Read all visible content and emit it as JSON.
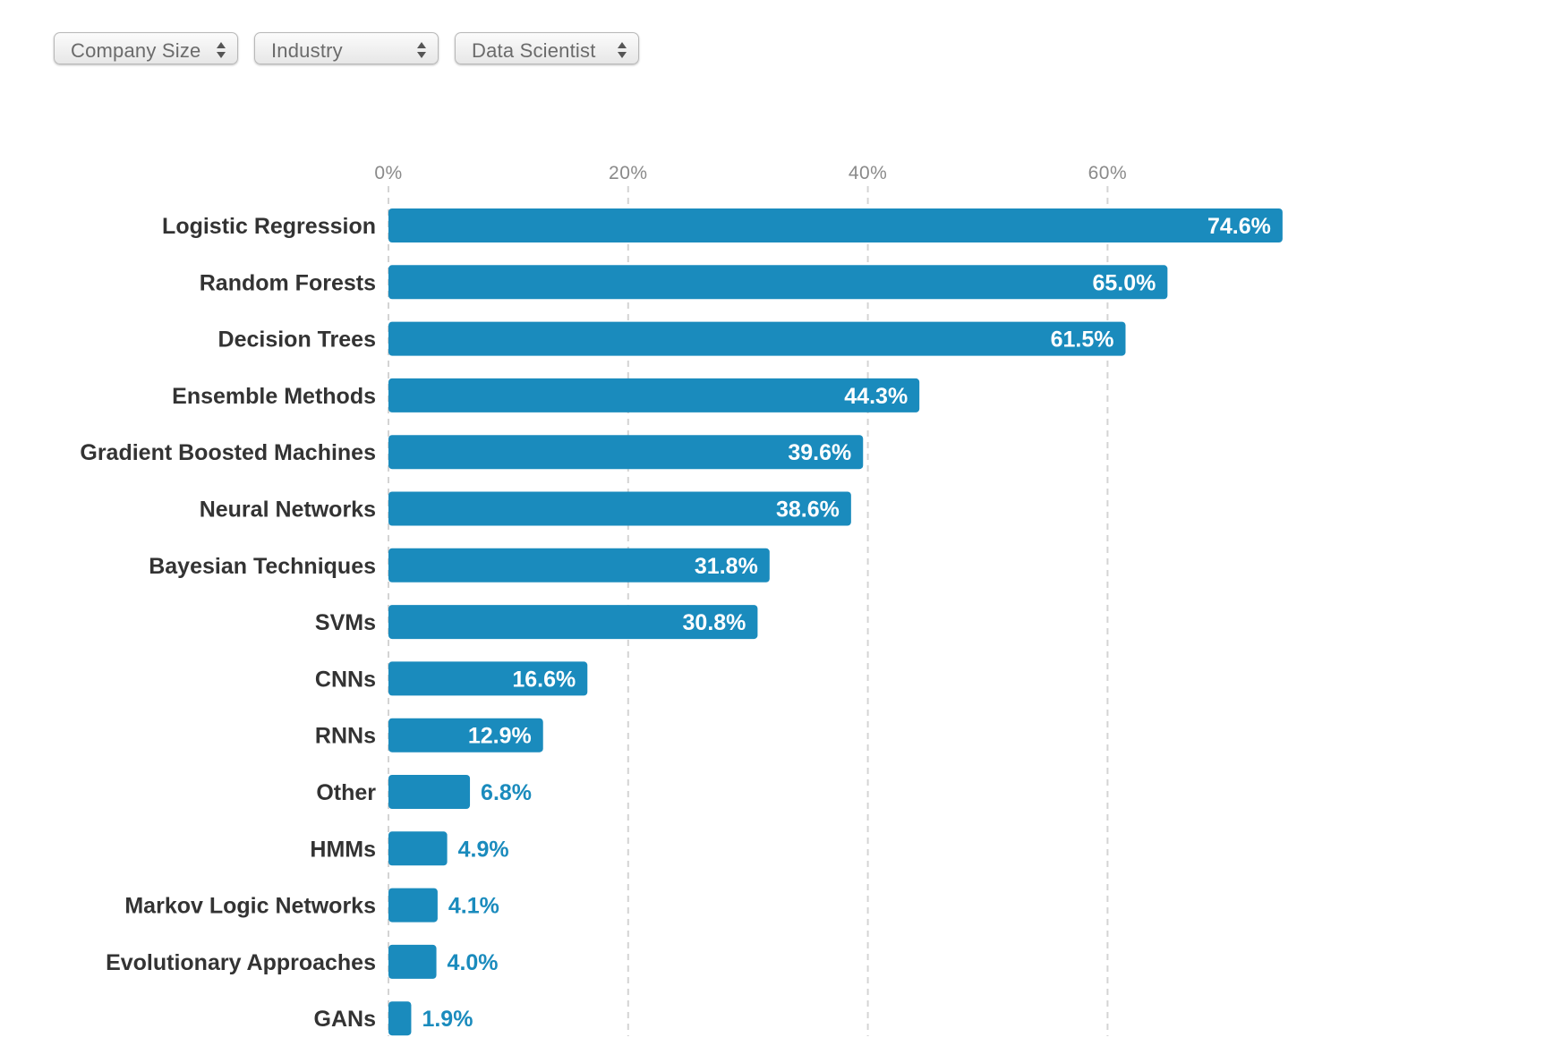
{
  "filters": [
    {
      "label": "Company Size"
    },
    {
      "label": "Industry"
    },
    {
      "label": "Data Scientist"
    }
  ],
  "colors": {
    "bar": "#1a8bbd",
    "label_inside": "#ffffff",
    "label_outside": "#1a8bbd",
    "category_text": "#333333",
    "tick_text": "#8a8a8a",
    "grid": "#d4d4d4"
  },
  "icons": {
    "select_arrows": "up-down-arrows-icon"
  },
  "chart_data": {
    "type": "bar",
    "orientation": "horizontal",
    "categories": [
      "Logistic Regression",
      "Random Forests",
      "Decision Trees",
      "Ensemble Methods",
      "Gradient Boosted Machines",
      "Neural Networks",
      "Bayesian Techniques",
      "SVMs",
      "CNNs",
      "RNNs",
      "Other",
      "HMMs",
      "Markov Logic Networks",
      "Evolutionary Approaches",
      "GANs"
    ],
    "values": [
      74.6,
      65.0,
      61.5,
      44.3,
      39.6,
      38.6,
      31.8,
      30.8,
      16.6,
      12.9,
      6.8,
      4.9,
      4.1,
      4.0,
      1.9
    ],
    "value_labels": [
      "74.6%",
      "65.0%",
      "61.5%",
      "44.3%",
      "39.6%",
      "38.6%",
      "31.8%",
      "30.8%",
      "16.6%",
      "12.9%",
      "6.8%",
      "4.9%",
      "4.1%",
      "4.0%",
      "1.9%"
    ],
    "xticks": [
      0,
      20,
      40,
      60
    ],
    "xtick_labels": [
      "0%",
      "20%",
      "40%",
      "60%"
    ],
    "xlim": [
      0,
      80
    ],
    "axis_position": "top",
    "grid": true,
    "legend": "none"
  }
}
